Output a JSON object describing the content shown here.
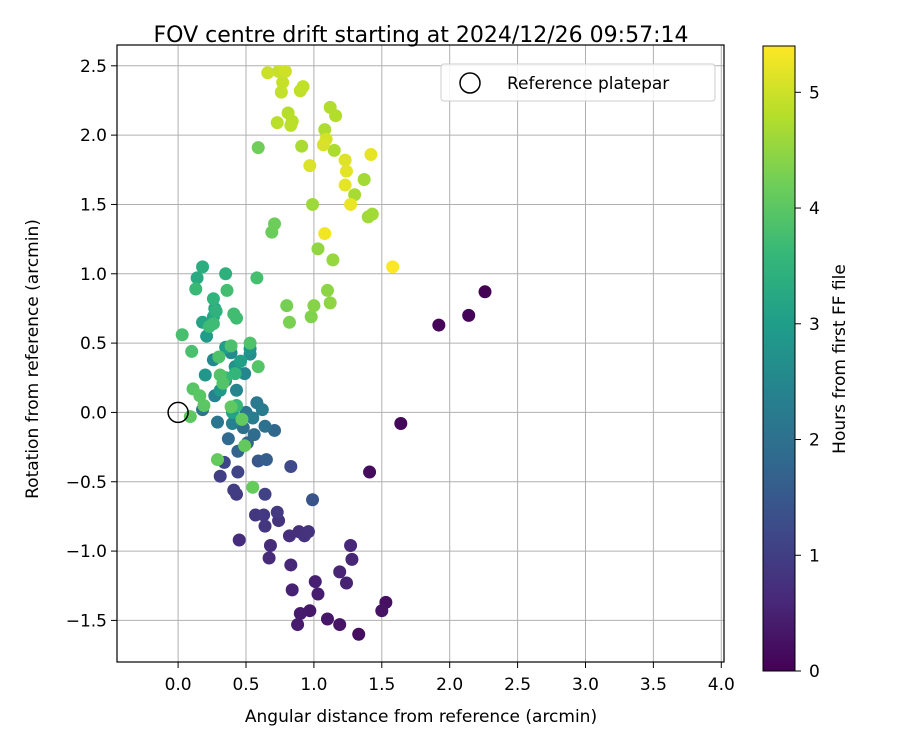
{
  "chart_data": {
    "type": "scatter",
    "title": "FOV centre drift starting at 2024/12/26 09:57:14",
    "xlabel": "Angular distance from reference (arcmin)",
    "ylabel": "Rotation from reference (arcmin)",
    "xlim": [
      -0.45,
      4.02
    ],
    "ylim": [
      -1.8,
      2.65
    ],
    "xticks": [
      "0.0",
      "0.5",
      "1.0",
      "1.5",
      "2.0",
      "2.5",
      "3.0",
      "3.5",
      "4.0"
    ],
    "yticks": [
      "−1.5",
      "−1.0",
      "−0.5",
      "0.0",
      "0.5",
      "1.0",
      "1.5",
      "2.0",
      "2.5"
    ],
    "grid": true,
    "legend": {
      "position": "top-right",
      "label": "Reference platepar"
    },
    "reference_point": {
      "x": 0.0,
      "y": 0.0
    },
    "colorbar": {
      "label": "Hours from first FF file",
      "range": [
        0,
        5.4
      ],
      "ticks": [
        "0",
        "1",
        "2",
        "3",
        "4",
        "5"
      ],
      "colormap": "viridis",
      "colors": [
        "#440154",
        "#482878",
        "#3e4989",
        "#31688e",
        "#26828e",
        "#1f9e89",
        "#35b779",
        "#6ece58",
        "#b5de2b",
        "#fde725"
      ]
    },
    "points": [
      {
        "x": 2.26,
        "y": 0.87,
        "c": 0.02
      },
      {
        "x": 2.14,
        "y": 0.7,
        "c": 0.05
      },
      {
        "x": 1.92,
        "y": 0.63,
        "c": 0.08
      },
      {
        "x": 1.64,
        "y": -0.08,
        "c": 0.12
      },
      {
        "x": 1.41,
        "y": -0.43,
        "c": 0.15
      },
      {
        "x": 1.33,
        "y": -1.6,
        "c": 0.2
      },
      {
        "x": 1.53,
        "y": -1.37,
        "c": 0.25
      },
      {
        "x": 1.5,
        "y": -1.43,
        "c": 0.28
      },
      {
        "x": 1.19,
        "y": -1.53,
        "c": 0.3
      },
      {
        "x": 1.1,
        "y": -1.49,
        "c": 0.33
      },
      {
        "x": 0.97,
        "y": -1.43,
        "c": 0.36
      },
      {
        "x": 0.9,
        "y": -1.45,
        "c": 0.4
      },
      {
        "x": 0.88,
        "y": -1.53,
        "c": 0.42
      },
      {
        "x": 1.03,
        "y": -1.31,
        "c": 0.45
      },
      {
        "x": 1.01,
        "y": -1.22,
        "c": 0.48
      },
      {
        "x": 0.84,
        "y": -1.28,
        "c": 0.5
      },
      {
        "x": 1.24,
        "y": -1.23,
        "c": 0.52
      },
      {
        "x": 1.19,
        "y": -1.15,
        "c": 0.55
      },
      {
        "x": 1.28,
        "y": -1.06,
        "c": 0.58
      },
      {
        "x": 1.27,
        "y": -0.96,
        "c": 0.6
      },
      {
        "x": 0.83,
        "y": -1.1,
        "c": 0.62
      },
      {
        "x": 0.67,
        "y": -1.05,
        "c": 0.65
      },
      {
        "x": 0.68,
        "y": -0.96,
        "c": 0.68
      },
      {
        "x": 0.45,
        "y": -0.92,
        "c": 0.7
      },
      {
        "x": 0.82,
        "y": -0.89,
        "c": 0.72
      },
      {
        "x": 0.89,
        "y": -0.86,
        "c": 0.75
      },
      {
        "x": 0.93,
        "y": -0.89,
        "c": 0.78
      },
      {
        "x": 0.96,
        "y": -0.86,
        "c": 0.8
      },
      {
        "x": 0.74,
        "y": -0.78,
        "c": 0.82
      },
      {
        "x": 0.64,
        "y": -0.82,
        "c": 0.85
      },
      {
        "x": 0.57,
        "y": -0.74,
        "c": 0.88
      },
      {
        "x": 0.63,
        "y": -0.74,
        "c": 0.9
      },
      {
        "x": 0.73,
        "y": -0.72,
        "c": 0.92
      },
      {
        "x": 0.43,
        "y": -0.59,
        "c": 0.95
      },
      {
        "x": 0.41,
        "y": -0.56,
        "c": 0.98
      },
      {
        "x": 0.31,
        "y": -0.46,
        "c": 1.0
      },
      {
        "x": 0.64,
        "y": -0.59,
        "c": 1.05
      },
      {
        "x": 0.44,
        "y": -0.43,
        "c": 1.1
      },
      {
        "x": 0.34,
        "y": -0.36,
        "c": 1.15
      },
      {
        "x": 0.83,
        "y": -0.39,
        "c": 1.22
      },
      {
        "x": 0.99,
        "y": -0.63,
        "c": 1.4
      },
      {
        "x": 0.59,
        "y": -0.35,
        "c": 1.5
      },
      {
        "x": 0.65,
        "y": -0.34,
        "c": 1.6
      },
      {
        "x": 0.51,
        "y": -0.22,
        "c": 1.7
      },
      {
        "x": 0.44,
        "y": -0.28,
        "c": 1.75
      },
      {
        "x": 0.71,
        "y": -0.13,
        "c": 1.8
      },
      {
        "x": 0.37,
        "y": -0.19,
        "c": 1.85
      },
      {
        "x": 0.56,
        "y": -0.16,
        "c": 1.9
      },
      {
        "x": 0.48,
        "y": -0.11,
        "c": 1.95
      },
      {
        "x": 0.64,
        "y": -0.1,
        "c": 2.0
      },
      {
        "x": 0.18,
        "y": 0.02,
        "c": 2.05
      },
      {
        "x": 0.29,
        "y": -0.07,
        "c": 2.1
      },
      {
        "x": 0.5,
        "y": 0.0,
        "c": 2.15
      },
      {
        "x": 0.58,
        "y": 0.07,
        "c": 2.2
      },
      {
        "x": 0.62,
        "y": 0.02,
        "c": 2.25
      },
      {
        "x": 0.55,
        "y": -0.04,
        "c": 2.3
      },
      {
        "x": 0.4,
        "y": -0.08,
        "c": 2.35
      },
      {
        "x": 0.27,
        "y": 0.12,
        "c": 2.4
      },
      {
        "x": 0.43,
        "y": 0.16,
        "c": 2.45
      },
      {
        "x": 0.49,
        "y": 0.28,
        "c": 2.5
      },
      {
        "x": 0.26,
        "y": 0.38,
        "c": 2.55
      },
      {
        "x": 0.39,
        "y": 0.43,
        "c": 2.6
      },
      {
        "x": 0.53,
        "y": 0.42,
        "c": 2.65
      },
      {
        "x": 0.35,
        "y": 0.23,
        "c": 2.7
      },
      {
        "x": 0.42,
        "y": 0.33,
        "c": 2.75
      },
      {
        "x": 0.53,
        "y": 0.46,
        "c": 2.8
      },
      {
        "x": 0.2,
        "y": 0.27,
        "c": 2.85
      },
      {
        "x": 0.31,
        "y": 0.16,
        "c": 2.9
      },
      {
        "x": 0.21,
        "y": 0.55,
        "c": 2.95
      },
      {
        "x": 0.35,
        "y": 0.47,
        "c": 3.0
      },
      {
        "x": 0.46,
        "y": 0.37,
        "c": 3.05
      },
      {
        "x": 0.4,
        "y": 0.0,
        "c": 3.1
      },
      {
        "x": 0.18,
        "y": 0.65,
        "c": 3.15
      },
      {
        "x": 0.26,
        "y": 0.69,
        "c": 3.2
      },
      {
        "x": 0.27,
        "y": 0.75,
        "c": 3.25
      },
      {
        "x": 0.14,
        "y": 0.97,
        "c": 3.3
      },
      {
        "x": 0.18,
        "y": 1.05,
        "c": 3.35
      },
      {
        "x": 0.35,
        "y": 1.0,
        "c": 3.4
      },
      {
        "x": 0.28,
        "y": 0.73,
        "c": 3.45
      },
      {
        "x": 0.26,
        "y": 0.82,
        "c": 3.5
      },
      {
        "x": 0.42,
        "y": 0.28,
        "c": 3.55
      },
      {
        "x": 0.35,
        "y": 0.25,
        "c": 3.6
      },
      {
        "x": 0.43,
        "y": 0.05,
        "c": 3.62
      },
      {
        "x": 0.13,
        "y": 0.89,
        "c": 3.65
      },
      {
        "x": 0.23,
        "y": 0.62,
        "c": 3.68
      },
      {
        "x": 0.26,
        "y": 0.64,
        "c": 3.7
      },
      {
        "x": 0.43,
        "y": 0.68,
        "c": 3.72
      },
      {
        "x": 0.41,
        "y": 0.71,
        "c": 3.74
      },
      {
        "x": 0.36,
        "y": 0.88,
        "c": 3.76
      },
      {
        "x": 0.58,
        "y": 0.97,
        "c": 3.78
      },
      {
        "x": 0.03,
        "y": 0.56,
        "c": 3.8
      },
      {
        "x": 0.1,
        "y": 0.44,
        "c": 3.82
      },
      {
        "x": 0.39,
        "y": 0.48,
        "c": 3.84
      },
      {
        "x": 0.3,
        "y": 0.4,
        "c": 3.86
      },
      {
        "x": 0.53,
        "y": 0.5,
        "c": 3.88
      },
      {
        "x": 0.31,
        "y": 0.27,
        "c": 3.9
      },
      {
        "x": 0.33,
        "y": 0.21,
        "c": 3.92
      },
      {
        "x": 0.59,
        "y": 0.33,
        "c": 3.94
      },
      {
        "x": 0.11,
        "y": 0.17,
        "c": 3.96
      },
      {
        "x": 0.16,
        "y": 0.12,
        "c": 3.98
      },
      {
        "x": 0.19,
        "y": 0.05,
        "c": 4.0
      },
      {
        "x": 0.09,
        "y": -0.03,
        "c": 4.02
      },
      {
        "x": 0.39,
        "y": 0.04,
        "c": 4.04
      },
      {
        "x": 0.47,
        "y": -0.05,
        "c": 4.06
      },
      {
        "x": 0.49,
        "y": -0.24,
        "c": 4.08
      },
      {
        "x": 0.29,
        "y": -0.34,
        "c": 4.1
      },
      {
        "x": 0.55,
        "y": -0.54,
        "c": 4.12
      },
      {
        "x": 0.69,
        "y": 1.3,
        "c": 4.15
      },
      {
        "x": 0.71,
        "y": 1.36,
        "c": 4.18
      },
      {
        "x": 0.59,
        "y": 1.91,
        "c": 4.2
      },
      {
        "x": 0.8,
        "y": 0.77,
        "c": 4.25
      },
      {
        "x": 0.82,
        "y": 0.65,
        "c": 4.3
      },
      {
        "x": 0.98,
        "y": 0.69,
        "c": 4.35
      },
      {
        "x": 1.0,
        "y": 0.77,
        "c": 4.4
      },
      {
        "x": 1.1,
        "y": 0.88,
        "c": 4.45
      },
      {
        "x": 1.12,
        "y": 0.79,
        "c": 4.48
      },
      {
        "x": 1.03,
        "y": 1.18,
        "c": 4.5
      },
      {
        "x": 1.14,
        "y": 1.1,
        "c": 4.55
      },
      {
        "x": 0.99,
        "y": 1.5,
        "c": 4.6
      },
      {
        "x": 1.4,
        "y": 1.41,
        "c": 4.62
      },
      {
        "x": 1.43,
        "y": 1.43,
        "c": 4.64
      },
      {
        "x": 1.37,
        "y": 1.68,
        "c": 4.66
      },
      {
        "x": 1.3,
        "y": 1.57,
        "c": 4.68
      },
      {
        "x": 0.91,
        "y": 1.92,
        "c": 4.7
      },
      {
        "x": 1.15,
        "y": 1.89,
        "c": 4.72
      },
      {
        "x": 1.08,
        "y": 2.04,
        "c": 4.74
      },
      {
        "x": 1.12,
        "y": 2.2,
        "c": 4.76
      },
      {
        "x": 1.16,
        "y": 2.14,
        "c": 4.78
      },
      {
        "x": 0.81,
        "y": 2.16,
        "c": 4.8
      },
      {
        "x": 0.84,
        "y": 2.1,
        "c": 4.82
      },
      {
        "x": 0.73,
        "y": 2.09,
        "c": 4.84
      },
      {
        "x": 0.83,
        "y": 2.07,
        "c": 4.86
      },
      {
        "x": 0.9,
        "y": 2.32,
        "c": 4.88
      },
      {
        "x": 0.92,
        "y": 2.35,
        "c": 4.9
      },
      {
        "x": 0.76,
        "y": 2.31,
        "c": 4.92
      },
      {
        "x": 0.77,
        "y": 2.38,
        "c": 4.94
      },
      {
        "x": 0.74,
        "y": 2.46,
        "c": 4.96
      },
      {
        "x": 0.66,
        "y": 2.45,
        "c": 4.98
      },
      {
        "x": 0.79,
        "y": 2.46,
        "c": 5.0
      },
      {
        "x": 1.09,
        "y": 1.97,
        "c": 5.05
      },
      {
        "x": 1.07,
        "y": 1.93,
        "c": 5.1
      },
      {
        "x": 0.97,
        "y": 1.78,
        "c": 5.12
      },
      {
        "x": 1.23,
        "y": 1.82,
        "c": 5.15
      },
      {
        "x": 1.24,
        "y": 1.74,
        "c": 5.18
      },
      {
        "x": 1.23,
        "y": 1.64,
        "c": 5.2
      },
      {
        "x": 1.42,
        "y": 1.86,
        "c": 5.22
      },
      {
        "x": 1.27,
        "y": 1.5,
        "c": 5.25
      },
      {
        "x": 1.08,
        "y": 1.29,
        "c": 5.3
      },
      {
        "x": 1.58,
        "y": 1.05,
        "c": 5.38
      }
    ]
  }
}
